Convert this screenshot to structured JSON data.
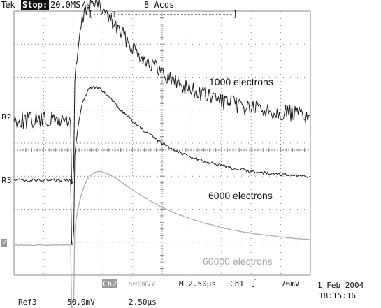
{
  "header": {
    "brand": "Tek",
    "run_state": "Stop:",
    "sample_rate": "20.0MS/s",
    "acquisitions": "8 Acqs",
    "trigger_marker": "T"
  },
  "markers": {
    "r2": "R2",
    "r3": "R3",
    "ch2": "2"
  },
  "annotations": {
    "a1000": "1000 electrons",
    "a6000": "6000 electrons",
    "a60000": "60000 electrons"
  },
  "status": {
    "ch2_label": "Ch2",
    "ch2_scale": "500mV∨",
    "timebase": "M 2.50µs",
    "trig_source": "Ch1",
    "trig_slope": "∫",
    "trig_level": "76mV",
    "date": "1 Feb 2004",
    "time": "18:15:16",
    "ref_name": "Ref3",
    "ref_volts": "50.0mV",
    "ref_time": "2.50µs"
  },
  "colors": {
    "trace_dark": "#1a1a1a",
    "trace_grey": "#a8a8a8",
    "grid": "#8a8a8a",
    "ch2_badge": "#9a9a9a"
  }
}
